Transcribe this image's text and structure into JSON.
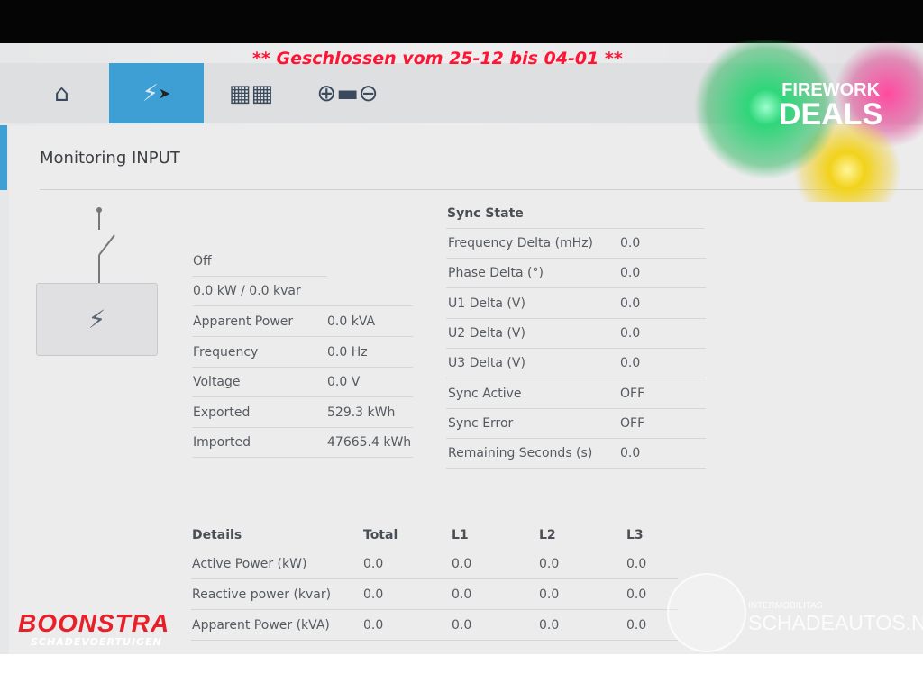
{
  "banner": "** Geschlossen vom 25-12 bis 04-01 **",
  "promo": {
    "line1": "FIREWORK",
    "line2": "DEALS"
  },
  "watermarks": {
    "boonstra": "BOONSTRA",
    "boonstra_sub": "SCHADEVOERTUIGEN",
    "schade_sub": "INTERMOBILITAS",
    "schade": "SCHADEAUTOS.NL"
  },
  "nav": {
    "tabs": [
      {
        "icon": "home-icon"
      },
      {
        "icon": "power-pylon-icon",
        "active": true
      },
      {
        "icon": "buildings-icon"
      },
      {
        "icon": "battery-icon"
      }
    ]
  },
  "page_title": "Monitoring INPUT",
  "status": {
    "state": "Off",
    "power": "0.0 kW / 0.0 kvar",
    "rows": [
      {
        "label": "Apparent Power",
        "value": "0.0 kVA"
      },
      {
        "label": "Frequency",
        "value": "0.0 Hz"
      },
      {
        "label": "Voltage",
        "value": "0.0 V"
      },
      {
        "label": "Exported",
        "value": "529.3 kWh"
      },
      {
        "label": "Imported",
        "value": "47665.4 kWh"
      }
    ]
  },
  "sync": {
    "title": "Sync State",
    "rows": [
      {
        "label": "Frequency Delta (mHz)",
        "value": "0.0"
      },
      {
        "label": "Phase Delta (°)",
        "value": "0.0"
      },
      {
        "label": "U1 Delta (V)",
        "value": "0.0"
      },
      {
        "label": "U2 Delta (V)",
        "value": "0.0"
      },
      {
        "label": "U3 Delta (V)",
        "value": "0.0"
      },
      {
        "label": "Sync Active",
        "value": "OFF"
      },
      {
        "label": "Sync Error",
        "value": "OFF"
      },
      {
        "label": "Remaining Seconds (s)",
        "value": "0.0"
      }
    ]
  },
  "details": {
    "headers": [
      "Details",
      "Total",
      "L1",
      "L2",
      "L3"
    ],
    "rows": [
      [
        "Active Power (kW)",
        "0.0",
        "0.0",
        "0.0",
        "0.0"
      ],
      [
        "Reactive power (kvar)",
        "0.0",
        "0.0",
        "0.0",
        "0.0"
      ],
      [
        "Apparent Power (kVA)",
        "0.0",
        "0.0",
        "0.0",
        "0.0"
      ]
    ]
  }
}
